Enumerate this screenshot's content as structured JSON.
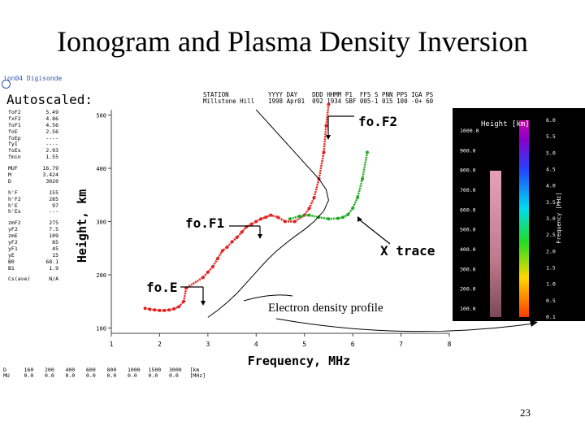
{
  "slide": {
    "title": "Ionogram and Plasma Density Inversion",
    "page_number": "23"
  },
  "ionogram": {
    "top_link": "ion04 Digisonde",
    "autoscaled_label": "Autoscaled:",
    "header_block_1": "STATION\nMillstone Hill",
    "header_block_2": "YYYY DAY    DDD HHMM P1  FFS S PNN PPS IGA PS\n1998 Apr01  092 1934 SBF 005-1 015 100 -0+ 60",
    "parameters": [
      {
        "name": "foF2",
        "value": "5.49"
      },
      {
        "name": "fxF2",
        "value": "4.86"
      },
      {
        "name": "foF1",
        "value": "4.56"
      },
      {
        "name": "foE",
        "value": "2.56"
      },
      {
        "name": "foEp",
        "value": "----"
      },
      {
        "name": "fyI",
        "value": "----"
      },
      {
        "name": "foEs",
        "value": "2.93"
      },
      {
        "name": "fmin",
        "value": "1.55"
      },
      {
        "name": "",
        "value": ""
      },
      {
        "name": "MUF",
        "value": "16.79"
      },
      {
        "name": "M",
        "value": "3.424"
      },
      {
        "name": "D",
        "value": "3020"
      },
      {
        "name": "",
        "value": ""
      },
      {
        "name": "h'F",
        "value": "155"
      },
      {
        "name": "h'F2",
        "value": "285"
      },
      {
        "name": "h'E",
        "value": "97"
      },
      {
        "name": "h'Es",
        "value": "---"
      },
      {
        "name": "",
        "value": ""
      },
      {
        "name": "zmF2",
        "value": "275"
      },
      {
        "name": "yF2",
        "value": "7.5"
      },
      {
        "name": "zmE",
        "value": "109"
      },
      {
        "name": "yF2",
        "value": "85"
      },
      {
        "name": "yF1",
        "value": "45"
      },
      {
        "name": "yE",
        "value": "15"
      },
      {
        "name": "B0",
        "value": "68.1"
      },
      {
        "name": "B1",
        "value": "1.9"
      },
      {
        "name": "",
        "value": ""
      },
      {
        "name": "Cs(ave)",
        "value": "N/A"
      }
    ],
    "bottom_table": {
      "row1": [
        "D",
        "160",
        "200",
        "400",
        "600",
        "800",
        "1000",
        "1500",
        "3000",
        "[km"
      ],
      "row2": [
        "MU",
        "0.0",
        "0.0",
        "0.0",
        "0.0",
        "0.0",
        "0.0",
        "0.0",
        "0.0",
        "[MHz]"
      ]
    },
    "annotations": {
      "foF2": "fo.F2",
      "foF1": "fo.F1",
      "foE": "fo.E",
      "x_trace": "X trace",
      "edp": "Electron density profile"
    },
    "colorbar": {
      "title": "Height [km]",
      "left_ticks": [
        "1000.0",
        "900.0",
        "800.0",
        "700.0",
        "600.0",
        "500.0",
        "400.0",
        "300.0",
        "200.0",
        "100.0"
      ],
      "right_ticks": [
        "6.0",
        "5.5",
        "5.0",
        "4.5",
        "4.0",
        "3.5",
        "3.0",
        "2.5",
        "2.0",
        "1.5",
        "1.0",
        "0.5",
        "0.1"
      ],
      "right_label": "Frequency [MHz]"
    }
  },
  "chart_data": {
    "type": "scatter",
    "title": "",
    "xlabel": "Frequency, MHz",
    "ylabel": "Height, km",
    "xlim": [
      1,
      8
    ],
    "ylim": [
      90,
      510
    ],
    "x_ticks": [
      1,
      2,
      3,
      4,
      5,
      6,
      7,
      8
    ],
    "x_tick_labels": [
      "1",
      "2",
      "3",
      "4",
      "5",
      "6",
      "7",
      "8"
    ],
    "y_ticks": [
      100,
      200,
      300,
      400,
      500
    ],
    "y_tick_labels": [
      "100",
      "200",
      "300",
      "400",
      "500"
    ],
    "grid": false,
    "series": [
      {
        "name": "O trace",
        "color": "#e62020",
        "x": [
          1.7,
          1.8,
          1.9,
          2.0,
          2.1,
          2.2,
          2.3,
          2.4,
          2.5,
          2.55,
          2.9,
          3.0,
          3.1,
          3.2,
          3.3,
          3.4,
          3.5,
          3.6,
          3.7,
          3.8,
          3.9,
          4.0,
          4.1,
          4.2,
          4.3,
          4.45,
          4.6,
          4.8,
          5.0,
          5.1,
          5.2,
          5.3,
          5.4,
          5.45,
          5.5
        ],
        "y": [
          137,
          135,
          134,
          133,
          133,
          134,
          136,
          140,
          150,
          175,
          195,
          205,
          215,
          230,
          245,
          252,
          262,
          270,
          280,
          290,
          295,
          300,
          305,
          308,
          312,
          308,
          300,
          300,
          312,
          325,
          345,
          380,
          430,
          480,
          520
        ]
      },
      {
        "name": "X trace",
        "color": "#22aa22",
        "x": [
          4.7,
          4.9,
          5.1,
          5.3,
          5.5,
          5.7,
          5.8,
          5.9,
          6.0,
          6.1,
          6.2,
          6.3
        ],
        "y": [
          305,
          310,
          312,
          308,
          305,
          306,
          308,
          313,
          325,
          345,
          380,
          430
        ]
      },
      {
        "name": "Electron density profile",
        "color": "#000000",
        "x": [
          3.0,
          3.2,
          3.4,
          3.6,
          3.8,
          4.0,
          4.2,
          4.4,
          4.6,
          4.8,
          5.0,
          5.2,
          5.4,
          5.5,
          5.45,
          5.3,
          5.1,
          4.9,
          4.7,
          4.5,
          4.4,
          4.3,
          4.2,
          4.1,
          4.0
        ],
        "y": [
          120,
          133,
          148,
          165,
          185,
          205,
          225,
          243,
          258,
          272,
          285,
          300,
          320,
          340,
          360,
          380,
          400,
          420,
          440,
          460,
          470,
          480,
          490,
          500,
          510
        ]
      }
    ],
    "annotations": [
      "fo.F2",
      "fo.F1",
      "fo.E",
      "X trace",
      "Electron density profile"
    ]
  }
}
